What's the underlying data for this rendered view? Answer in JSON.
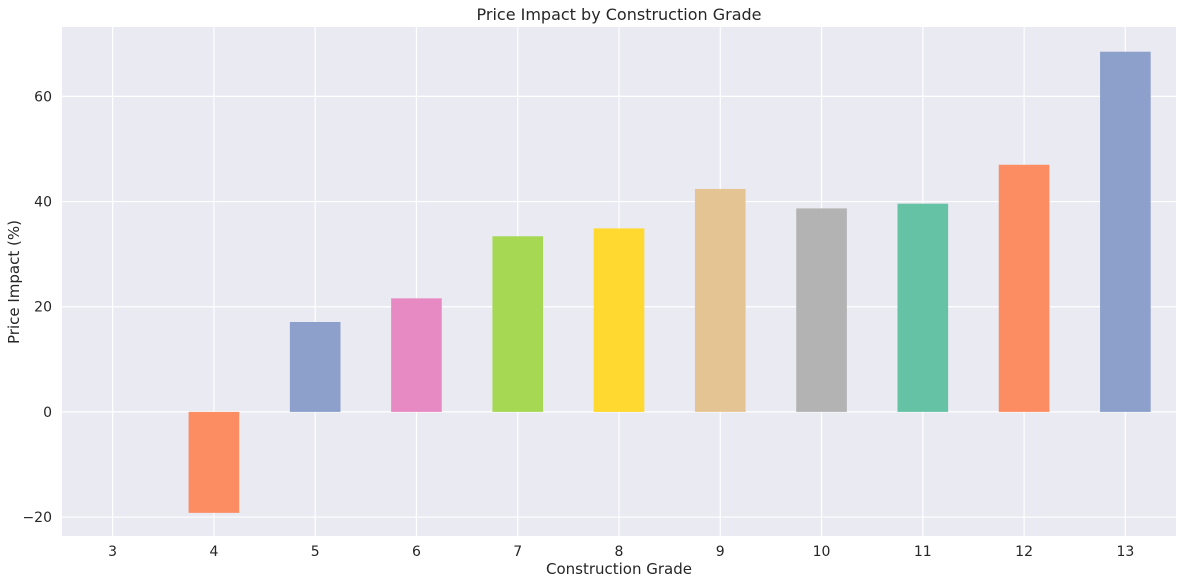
{
  "chart_data": {
    "type": "bar",
    "title": "Price Impact by Construction Grade",
    "xlabel": "Construction Grade",
    "ylabel": "Price Impact (%)",
    "categories": [
      "3",
      "4",
      "5",
      "6",
      "7",
      "8",
      "9",
      "10",
      "11",
      "12",
      "13"
    ],
    "values": [
      0,
      -19.2,
      17.1,
      21.6,
      33.4,
      34.9,
      42.4,
      38.7,
      39.6,
      47.0,
      68.5
    ],
    "colors": [
      "#66c2a5",
      "#fc8d62",
      "#8da0cb",
      "#e78ac3",
      "#a6d854",
      "#ffd92f",
      "#e5c494",
      "#b3b3b3",
      "#66c2a5",
      "#fc8d62",
      "#8da0cb"
    ],
    "yticks": [
      -20,
      0,
      20,
      40,
      60
    ],
    "ylim": [
      -23.6,
      73.2
    ],
    "grid": true,
    "background": "#eaeaf2",
    "grid_color": "#ffffff"
  }
}
